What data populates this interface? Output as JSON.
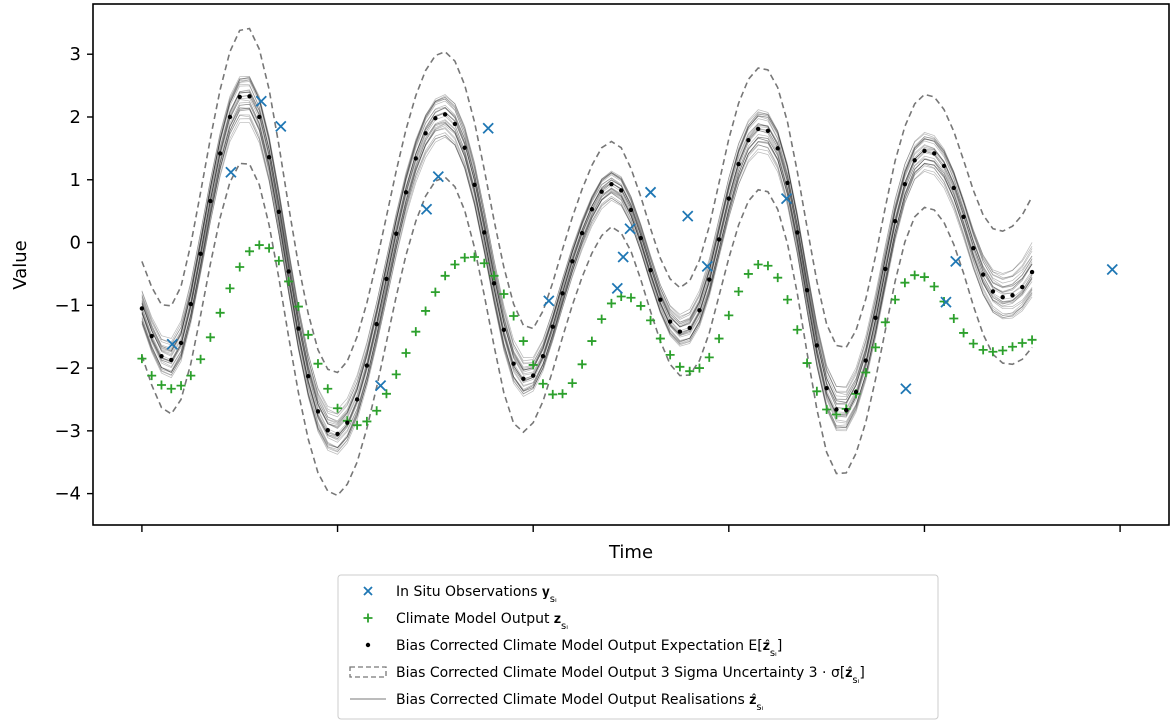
{
  "chart_data": {
    "type": "line",
    "xlabel": "Time",
    "ylabel": "Value",
    "ylim": [
      -4.5,
      3.8
    ],
    "xlim": [
      -0.05,
      1.05
    ],
    "yticks": [
      3,
      2,
      1,
      0,
      -1,
      -2,
      -3,
      -4
    ],
    "ytick_labels": [
      "3",
      "2",
      "1",
      "0",
      "−1",
      "−2",
      "−3",
      "−4"
    ],
    "xticks": [
      0,
      0.2,
      0.4,
      0.6,
      0.8,
      1.0
    ],
    "grid": false,
    "legend_position": "bottom-center",
    "colors": {
      "observations": "#1f77b4",
      "climate_model": "#2ca02c",
      "expectation": "#000000",
      "uncertainty": "#777777",
      "realisations": "#000000"
    },
    "legend": [
      {
        "key": "observations",
        "label": "In Situ Observations 𝐲",
        "sub": "sᵢ"
      },
      {
        "key": "climate_model",
        "label": "Climate Model Output 𝐳",
        "sub": "sᵢ"
      },
      {
        "key": "expectation",
        "label": "Bias Corrected Climate Model Output Expectation E[𝐳̂",
        "sub": "sᵢ",
        "suffix": "]"
      },
      {
        "key": "uncertainty",
        "label": "Bias Corrected Climate Model Output 3 Sigma Uncertainty 3 · σ[𝐳̂",
        "sub": "sᵢ",
        "suffix": "]"
      },
      {
        "key": "realisations",
        "label": "Bias Corrected Climate Model Output Realisations 𝐳̂",
        "sub": "sᵢ"
      }
    ],
    "series": [
      {
        "name": "In Situ Observations",
        "kind": "scatter-x",
        "points": [
          [
            0.031,
            -1.62
          ],
          [
            0.091,
            1.12
          ],
          [
            0.122,
            2.25
          ],
          [
            0.142,
            1.85
          ],
          [
            0.244,
            -2.28
          ],
          [
            0.291,
            0.53
          ],
          [
            0.303,
            1.05
          ],
          [
            0.354,
            1.82
          ],
          [
            0.416,
            -0.93
          ],
          [
            0.486,
            -0.73
          ],
          [
            0.492,
            -0.23
          ],
          [
            0.499,
            0.22
          ],
          [
            0.52,
            0.8
          ],
          [
            0.558,
            0.42
          ],
          [
            0.578,
            -0.38
          ],
          [
            0.659,
            0.7
          ],
          [
            0.781,
            -2.33
          ],
          [
            0.822,
            -0.95
          ],
          [
            0.832,
            -0.3
          ],
          [
            0.992,
            -0.43
          ]
        ]
      },
      {
        "name": "Climate Model Output",
        "kind": "scatter-plus",
        "x_start": 0.0,
        "x_step": 0.01,
        "values": [
          -1.85,
          -2.12,
          -2.27,
          -2.33,
          -2.28,
          -2.12,
          -1.86,
          -1.51,
          -1.12,
          -0.73,
          -0.39,
          -0.14,
          -0.04,
          -0.09,
          -0.29,
          -0.62,
          -1.02,
          -1.47,
          -1.93,
          -2.33,
          -2.64,
          -2.84,
          -2.91,
          -2.85,
          -2.68,
          -2.41,
          -2.1,
          -1.76,
          -1.42,
          -1.09,
          -0.79,
          -0.53,
          -0.35,
          -0.24,
          -0.23,
          -0.33,
          -0.53,
          -0.82,
          -1.17,
          -1.57,
          -1.95,
          -2.25,
          -2.42,
          -2.41,
          -2.24,
          -1.94,
          -1.57,
          -1.22,
          -0.97,
          -0.86,
          -0.88,
          -1.01,
          -1.24,
          -1.53,
          -1.79,
          -1.98,
          -2.05,
          -2.0,
          -1.83,
          -1.53,
          -1.16,
          -0.78,
          -0.5,
          -0.35,
          -0.37,
          -0.56,
          -0.91,
          -1.39,
          -1.92,
          -2.37,
          -2.66,
          -2.74,
          -2.65,
          -2.41,
          -2.07,
          -1.67,
          -1.27,
          -0.91,
          -0.64,
          -0.52,
          -0.55,
          -0.7,
          -0.94,
          -1.21,
          -1.44,
          -1.61,
          -1.71,
          -1.74,
          -1.72,
          -1.66,
          -1.6,
          -1.55
        ]
      },
      {
        "name": "Bias Corrected Climate Model Output Expectation",
        "kind": "dots",
        "x_start": 0.0,
        "x_step": 0.01,
        "values": [
          -1.05,
          -1.49,
          -1.81,
          -1.87,
          -1.6,
          -0.98,
          -0.18,
          0.66,
          1.42,
          2.0,
          2.32,
          2.33,
          2.0,
          1.36,
          0.49,
          -0.46,
          -1.37,
          -2.13,
          -2.69,
          -2.99,
          -3.05,
          -2.87,
          -2.5,
          -1.96,
          -1.3,
          -0.58,
          0.14,
          0.8,
          1.34,
          1.74,
          1.98,
          2.04,
          1.89,
          1.51,
          0.92,
          0.16,
          -0.65,
          -1.39,
          -1.93,
          -2.17,
          -2.12,
          -1.81,
          -1.34,
          -0.81,
          -0.3,
          0.15,
          0.53,
          0.81,
          0.93,
          0.83,
          0.52,
          0.07,
          -0.44,
          -0.91,
          -1.26,
          -1.42,
          -1.36,
          -1.08,
          -0.59,
          0.05,
          0.7,
          1.25,
          1.63,
          1.81,
          1.78,
          1.5,
          0.95,
          0.16,
          -0.76,
          -1.64,
          -2.32,
          -2.66,
          -2.67,
          -2.38,
          -1.88,
          -1.2,
          -0.42,
          0.34,
          0.93,
          1.31,
          1.46,
          1.42,
          1.22,
          0.87,
          0.41,
          -0.09,
          -0.51,
          -0.78,
          -0.87,
          -0.84,
          -0.71,
          -0.47
        ]
      },
      {
        "name": "Bias Corrected Climate Model Output 3 Sigma Uncertainty",
        "kind": "band",
        "sigma3": [
          0.75,
          0.78,
          0.82,
          0.86,
          0.9,
          0.95,
          0.98,
          1.0,
          1.02,
          1.04,
          1.06,
          1.08,
          1.08,
          1.08,
          1.06,
          1.04,
          1.02,
          1.0,
          0.98,
          0.97,
          0.98,
          0.98,
          1.0,
          1.0,
          1.0,
          1.0,
          1.0,
          1.0,
          1.0,
          1.0,
          1.0,
          1.0,
          1.0,
          1.0,
          1.0,
          1.0,
          1.0,
          1.0,
          0.95,
          0.85,
          0.75,
          0.72,
          0.7,
          0.7,
          0.7,
          0.7,
          0.7,
          0.7,
          0.68,
          0.68,
          0.66,
          0.66,
          0.66,
          0.66,
          0.68,
          0.7,
          0.75,
          0.8,
          0.85,
          0.9,
          0.95,
          0.97,
          0.97,
          0.97,
          0.97,
          0.97,
          0.97,
          0.97,
          1.0,
          1.02,
          1.02,
          1.02,
          1.0,
          0.98,
          0.98,
          0.98,
          0.98,
          0.96,
          0.92,
          0.9,
          0.9,
          0.9,
          0.9,
          0.9,
          0.9,
          0.92,
          0.95,
          1.0,
          1.05,
          1.1,
          1.15,
          1.2
        ]
      },
      {
        "name": "Bias Corrected Climate Model Output Realisations",
        "kind": "realisations",
        "count": 30
      }
    ]
  }
}
